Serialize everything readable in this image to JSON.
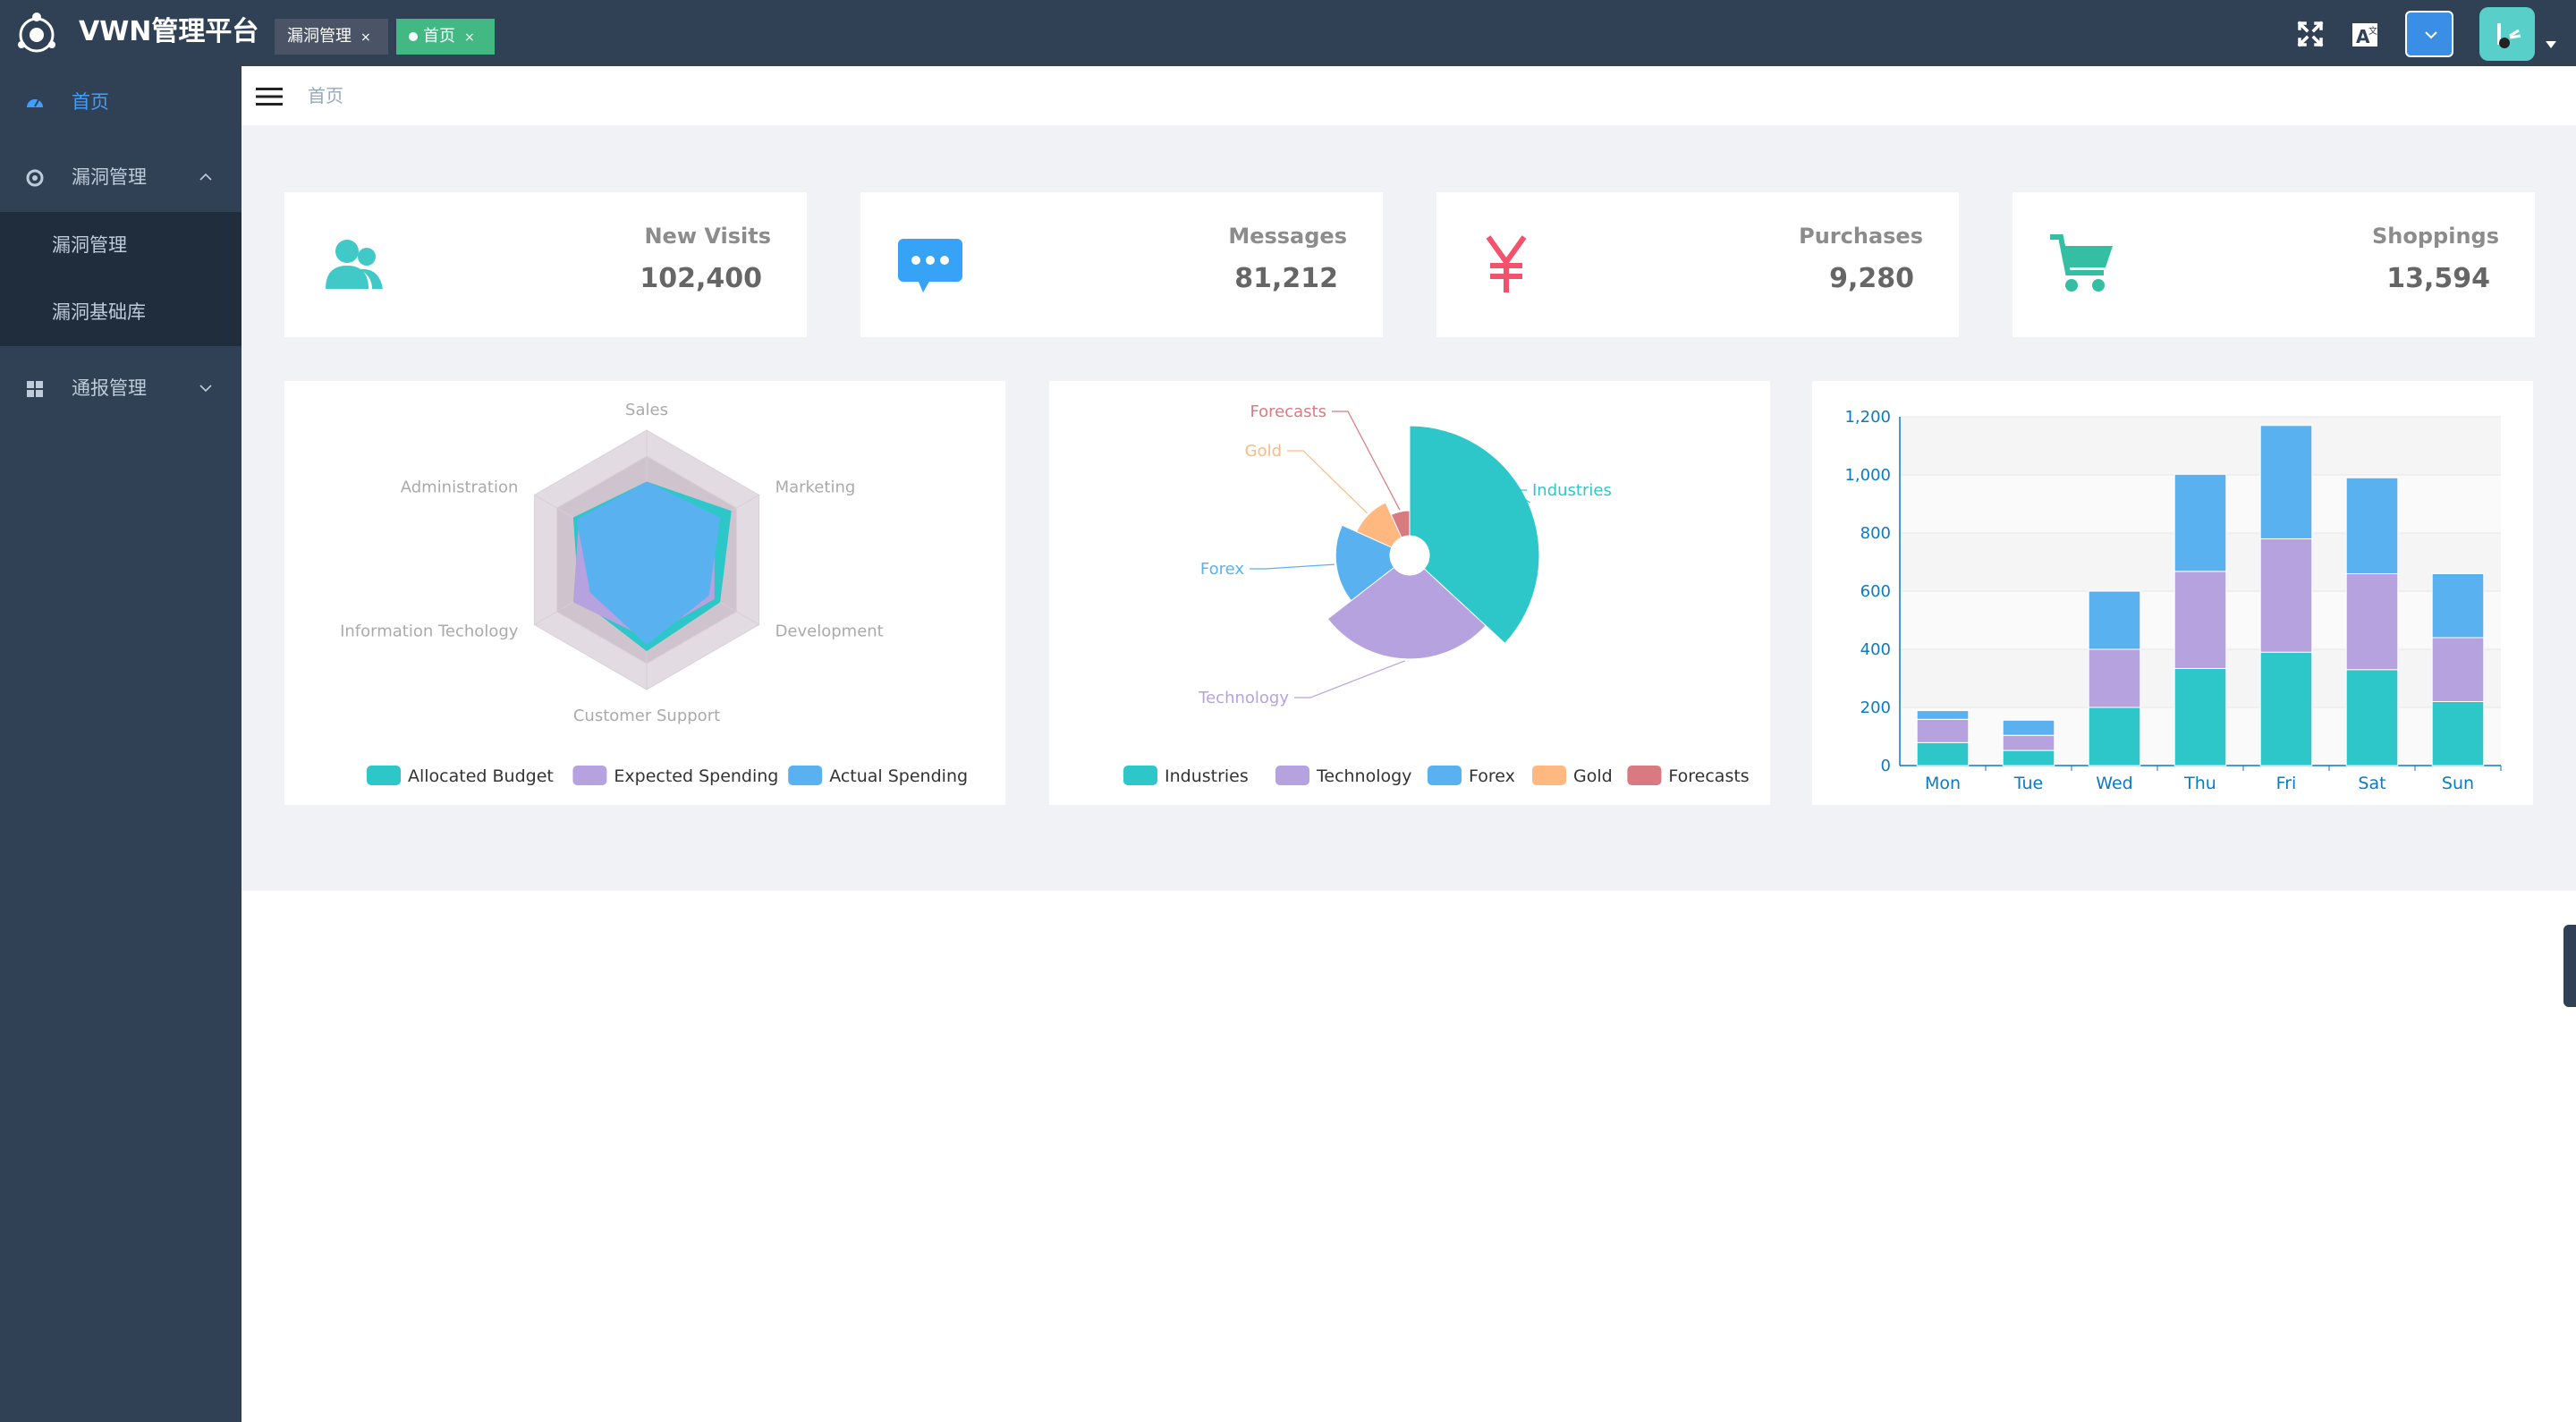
{
  "app": {
    "title": "VWN管理平台"
  },
  "tabs": [
    {
      "label": "漏洞管理",
      "close": "×",
      "active": false
    },
    {
      "label": "首页",
      "close": "×",
      "active": true
    }
  ],
  "topbar_icons": [
    "fullscreen-icon",
    "translate-icon",
    "chevron-down-icon",
    "avatar"
  ],
  "sidebar": {
    "items": [
      {
        "label": "首页",
        "icon": "dashboard-icon",
        "active": true
      },
      {
        "label": "漏洞管理",
        "icon": "target-icon",
        "expanded": true,
        "children": [
          {
            "label": "漏洞管理"
          },
          {
            "label": "漏洞基础库"
          }
        ]
      },
      {
        "label": "通报管理",
        "icon": "grid-icon",
        "expanded": false
      }
    ]
  },
  "breadcrumb": {
    "current": "首页"
  },
  "cards": [
    {
      "label": "New Visits",
      "value": "102,400",
      "icon": "people-icon",
      "color": "#40c9c6"
    },
    {
      "label": "Messages",
      "value": "81,212",
      "icon": "message-icon",
      "color": "#36a3f7"
    },
    {
      "label": "Purchases",
      "value": "9,280",
      "icon": "money-icon",
      "color": "#f4516c"
    },
    {
      "label": "Shoppings",
      "value": "13,594",
      "icon": "shopping-cart-icon",
      "color": "#34bfa3"
    }
  ],
  "colors": {
    "teal": "#2ec7c9",
    "purple": "#b6a2de",
    "blue": "#5ab1ef",
    "orange": "#ffb980",
    "red": "#d87a80",
    "sidebar": "#304156",
    "active": "#409eff"
  },
  "chart_data": [
    {
      "type": "radar",
      "indicators": [
        "Sales",
        "Marketing",
        "Development",
        "Customer Support",
        "Information Techology",
        "Administration"
      ],
      "series": [
        {
          "name": "Allocated Budget",
          "values": [
            0.6,
            0.75,
            0.65,
            0.7,
            0.6,
            0.65
          ]
        },
        {
          "name": "Expected Spending",
          "values": [
            0.55,
            0.6,
            0.6,
            0.6,
            0.65,
            0.6
          ]
        },
        {
          "name": "Actual Spending",
          "values": [
            0.6,
            0.65,
            0.55,
            0.65,
            0.5,
            0.62
          ]
        }
      ],
      "legend": "bottom"
    },
    {
      "type": "pie",
      "roseType": "radius",
      "slices": [
        {
          "name": "Industries",
          "value": 320
        },
        {
          "name": "Technology",
          "value": 240
        },
        {
          "name": "Forex",
          "value": 149
        },
        {
          "name": "Gold",
          "value": 100
        },
        {
          "name": "Forecasts",
          "value": 59
        }
      ],
      "legend": "bottom"
    },
    {
      "type": "bar",
      "stacked": true,
      "categories": [
        "Mon",
        "Tue",
        "Wed",
        "Thu",
        "Fri",
        "Sat",
        "Sun"
      ],
      "series": [
        {
          "name": "",
          "values": [
            79,
            52,
            200,
            334,
            390,
            330,
            220
          ]
        },
        {
          "name": "",
          "values": [
            80,
            52,
            200,
            334,
            390,
            330,
            220
          ]
        },
        {
          "name": "",
          "values": [
            30,
            52,
            200,
            334,
            390,
            330,
            220
          ]
        }
      ],
      "yticks": [
        "0",
        "200",
        "400",
        "600",
        "800",
        "1,000",
        "1,200"
      ],
      "ylim": [
        0,
        1200
      ],
      "grid": true
    }
  ]
}
